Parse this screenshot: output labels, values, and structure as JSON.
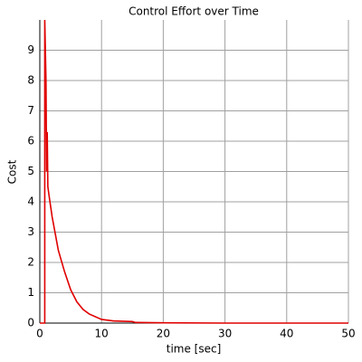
{
  "chart_data": {
    "type": "line",
    "title": "Control Effort over Time",
    "x_label": "time [sec]",
    "y_label": "Cost",
    "x": [
      0,
      0.8,
      0.8,
      1.0,
      1.1,
      1.2,
      1.3,
      1.5,
      2,
      3,
      4,
      5,
      6,
      7,
      8,
      10,
      12,
      15,
      15.5,
      20,
      30,
      40,
      50
    ],
    "series": [
      {
        "name": "Cost",
        "color": "#e00000",
        "values": [
          0,
          0,
          10,
          8,
          5,
          6.3,
          4.5,
          4.2,
          3.5,
          2.4,
          1.7,
          1.1,
          0.7,
          0.45,
          0.3,
          0.12,
          0.07,
          0.05,
          0.02,
          0.01,
          0,
          0,
          0
        ]
      }
    ],
    "xlim": [
      0,
      50
    ],
    "xticks": [
      0,
      10,
      20,
      30,
      40,
      50
    ],
    "ylim": [
      0,
      10
    ],
    "yticks": [
      0,
      1,
      2,
      3,
      4,
      5,
      6,
      7,
      8,
      9
    ],
    "grid": true
  }
}
